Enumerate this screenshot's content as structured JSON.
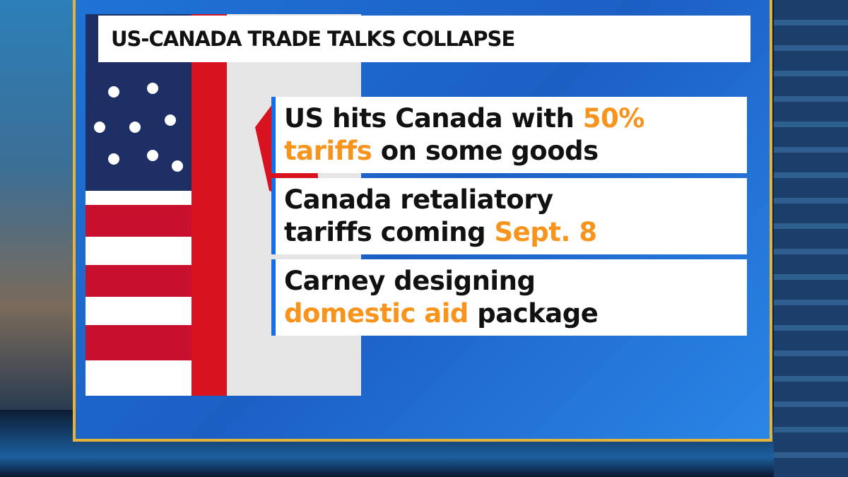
{
  "header": {
    "title": "US-CANADA TRADE TALKS COLLAPSE"
  },
  "bullets": [
    {
      "lines": [
        [
          {
            "text": "US hits Canada with ",
            "color": "#111111"
          },
          {
            "text": "50%",
            "color": "#f7941d"
          }
        ],
        [
          {
            "text": "tariffs",
            "color": "#f7941d"
          },
          {
            "text": " on some goods",
            "color": "#111111"
          }
        ]
      ]
    },
    {
      "lines": [
        [
          {
            "text": "Canada retaliatory",
            "color": "#111111"
          }
        ],
        [
          {
            "text": "tariffs coming ",
            "color": "#111111"
          },
          {
            "text": "Sept. 8",
            "color": "#f7941d"
          }
        ]
      ]
    },
    {
      "lines": [
        [
          {
            "text": "Carney designing",
            "color": "#111111"
          }
        ],
        [
          {
            "text": "domestic aid",
            "color": "#f7941d"
          },
          {
            "text": " package",
            "color": "#111111"
          }
        ]
      ]
    }
  ]
}
